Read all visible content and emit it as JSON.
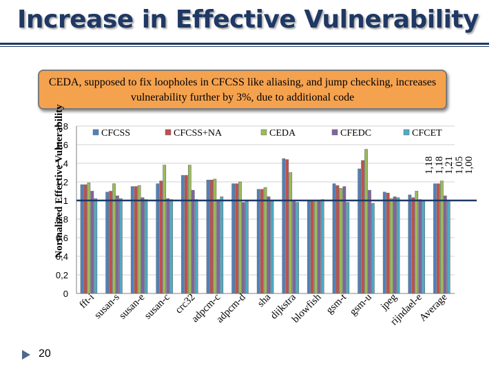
{
  "slide": {
    "title": "Increase in Effective Vulnerability",
    "callout": "CEDA, supposed to fix loopholes in CFCSS like aliasing, and jump checking, increases vulnerability further by 3%, due to additional code",
    "page_number": "20",
    "colors": {
      "title": "#1f3864",
      "callout_bg": "#f5a24f",
      "bullet": "#4d6a8c"
    }
  },
  "chart_data": {
    "type": "bar",
    "ylabel": "Normalized Effective Vulnerability",
    "ylim": [
      0,
      1.8
    ],
    "yticks": [
      "0",
      "0,2",
      "0,4",
      "0,6",
      "0,8",
      "1",
      "1,2",
      "1,4",
      "1,6",
      "1,8"
    ],
    "grid": true,
    "legend_position": "top",
    "reference_line": 1.0,
    "categories": [
      "fft-i",
      "susan-s",
      "susan-e",
      "susan-c",
      "crc32",
      "adpcm-c",
      "adpcm-d",
      "sha",
      "dijkstra",
      "blowfish",
      "gsm-t",
      "gsm-u",
      "jpeg",
      "rijndael-e",
      "Average"
    ],
    "series": [
      {
        "name": "CFCSS",
        "color": "#4f81bd",
        "values": [
          1.17,
          1.09,
          1.15,
          1.18,
          1.27,
          1.22,
          1.18,
          1.12,
          1.45,
          0.99,
          1.18,
          1.34,
          1.09,
          1.06,
          1.18
        ]
      },
      {
        "name": "CFCSS+NA",
        "color": "#c0504d",
        "values": [
          1.17,
          1.1,
          1.15,
          1.21,
          1.27,
          1.22,
          1.18,
          1.12,
          1.44,
          1.0,
          1.16,
          1.43,
          1.08,
          1.03,
          1.18
        ]
      },
      {
        "name": "CEDA",
        "color": "#9bbb59",
        "values": [
          1.19,
          1.18,
          1.16,
          1.38,
          1.38,
          1.23,
          1.2,
          1.14,
          1.3,
          1.0,
          1.13,
          1.55,
          1.02,
          1.1,
          1.21
        ]
      },
      {
        "name": "CFEDC",
        "color": "#8064a2",
        "values": [
          1.1,
          1.05,
          1.03,
          1.02,
          1.11,
          1.01,
          0.98,
          1.04,
          0.99,
          1.0,
          1.15,
          1.11,
          1.04,
          1.01,
          1.05
        ]
      },
      {
        "name": "CFCET",
        "color": "#4bacc6",
        "values": [
          1.02,
          1.02,
          1.01,
          1.01,
          1.01,
          1.04,
          0.99,
          0.99,
          0.98,
          1.01,
          0.98,
          0.97,
          1.03,
          0.99,
          1.0
        ]
      }
    ],
    "average_labels": [
      "1,18",
      "1,18",
      "1,21",
      "1,05",
      "1,00"
    ]
  }
}
